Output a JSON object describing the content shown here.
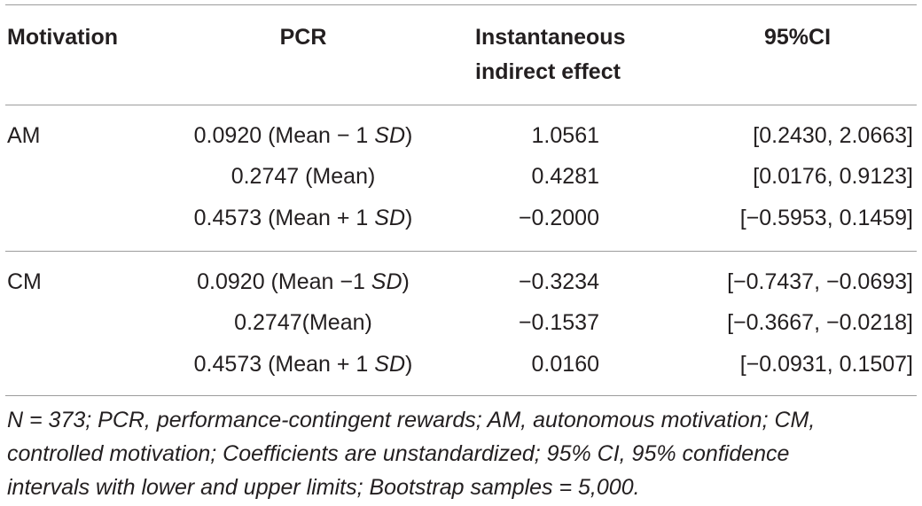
{
  "header": {
    "motivation": "Motivation",
    "pcr": "PCR",
    "effect_line1": "Instantaneous",
    "effect_line2": "indirect effect",
    "ci": "95%CI"
  },
  "groups": [
    {
      "name": "AM",
      "rows": [
        {
          "pcr_value": "0.0920 (Mean − 1 ",
          "pcr_sd": "SD",
          "pcr_end": ")",
          "effect": "1.0561",
          "ci": "[0.2430, 2.0663]"
        },
        {
          "pcr_value": "0.2747 (Mean)",
          "pcr_sd": "",
          "pcr_end": "",
          "effect": "0.4281",
          "ci": "[0.0176, 0.9123]"
        },
        {
          "pcr_value": "0.4573 (Mean + 1 ",
          "pcr_sd": "SD",
          "pcr_end": ")",
          "effect": "−0.2000",
          "ci": "[−0.5953, 0.1459]"
        }
      ]
    },
    {
      "name": "CM",
      "rows": [
        {
          "pcr_value": "0.0920 (Mean −1 ",
          "pcr_sd": "SD",
          "pcr_end": ")",
          "effect": "−0.3234",
          "ci": "[−0.7437, −0.0693]"
        },
        {
          "pcr_value": "0.2747(Mean)",
          "pcr_sd": "",
          "pcr_end": "",
          "effect": "−0.1537",
          "ci": "[−0.3667, −0.0218]"
        },
        {
          "pcr_value": "0.4573 (Mean + 1 ",
          "pcr_sd": "SD",
          "pcr_end": ")",
          "effect": "0.0160",
          "ci": "[−0.0931, 0.1507]"
        }
      ]
    }
  ],
  "footnote": {
    "line1": "N = 373; PCR, performance-contingent rewards; AM, autonomous motivation; CM,",
    "line2": "controlled motivation; Coefficients are unstandardized; 95% CI, 95% confidence",
    "line3": "intervals with lower and upper limits; Bootstrap samples = 5,000."
  }
}
